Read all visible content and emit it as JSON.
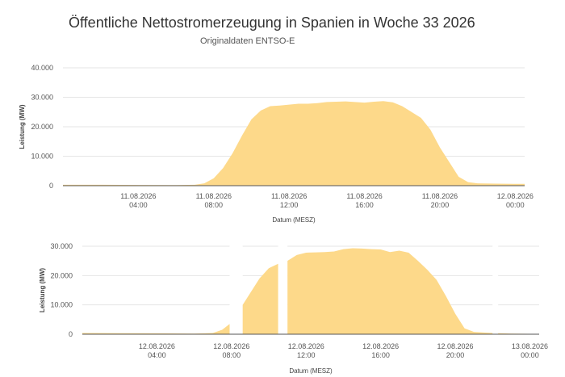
{
  "header": {
    "title": "Öffentliche Nettostromerzeugung in Spanien in Woche 33 2026",
    "subtitle": "Originaldaten ENTSO-E"
  },
  "colors": {
    "area": "#fdd98a",
    "line": "#3a3a3a",
    "grid": "#e6e6e6"
  },
  "chart_data": [
    {
      "type": "area",
      "title": "",
      "xlabel": "Datum (MESZ)",
      "ylabel": "Leistung (MW)",
      "ylim": [
        0,
        40000
      ],
      "yticks": [
        0,
        10000,
        20000,
        30000,
        40000
      ],
      "ytick_labels": [
        "0",
        "10.000",
        "20.000",
        "30.000",
        "40.000"
      ],
      "xlim": [
        0,
        24.5
      ],
      "xticks": [
        4,
        8,
        12,
        16,
        20,
        24
      ],
      "xtick_labels": [
        [
          "11.08.2026",
          "04:00"
        ],
        [
          "11.08.2026",
          "08:00"
        ],
        [
          "11.08.2026",
          "12:00"
        ],
        [
          "11.08.2026",
          "16:00"
        ],
        [
          "11.08.2026",
          "20:00"
        ],
        [
          "12.08.2026",
          "00:00"
        ]
      ],
      "grid": true,
      "x_unit": "hours since 11.08.2026 00:00",
      "series": [
        {
          "x": [
            0,
            2,
            4,
            6,
            7,
            7.5,
            8,
            8.5,
            9,
            9.5,
            10,
            10.5,
            11,
            11.5,
            12,
            12.5,
            13,
            13.5,
            14,
            14.5,
            15,
            15.5,
            16,
            16.5,
            17,
            17.5,
            18,
            18.5,
            19,
            19.5,
            20,
            20.5,
            21,
            21.5,
            22,
            23,
            24,
            24.5
          ],
          "values": [
            300,
            300,
            250,
            200,
            300,
            800,
            2500,
            6000,
            11000,
            17000,
            22500,
            25500,
            27000,
            27200,
            27500,
            27800,
            27800,
            28000,
            28400,
            28500,
            28600,
            28400,
            28200,
            28500,
            28700,
            28300,
            27000,
            25000,
            23000,
            19000,
            13000,
            8000,
            3000,
            1200,
            800,
            700,
            600,
            600
          ]
        }
      ]
    },
    {
      "type": "area",
      "title": "",
      "xlabel": "Datum (MESZ)",
      "ylabel": "Leistung (MW)",
      "ylim": [
        0,
        30000
      ],
      "yticks": [
        0,
        10000,
        20000,
        30000
      ],
      "ytick_labels": [
        "0",
        "10.000",
        "20.000",
        "30.000"
      ],
      "xlim": [
        0,
        24.5
      ],
      "xticks": [
        4,
        8,
        12,
        16,
        20,
        24
      ],
      "xtick_labels": [
        [
          "12.08.2026",
          "04:00"
        ],
        [
          "12.08.2026",
          "08:00"
        ],
        [
          "12.08.2026",
          "12:00"
        ],
        [
          "12.08.2026",
          "16:00"
        ],
        [
          "12.08.2026",
          "20:00"
        ],
        [
          "13.08.2026",
          "00:00"
        ]
      ],
      "grid": true,
      "x_unit": "hours since 12.08.2026 00:00",
      "series": [
        {
          "x": [
            0,
            2,
            4,
            6,
            7,
            7.5,
            8,
            8.5,
            9,
            9.5,
            10,
            10.5,
            11.0
          ],
          "values": [
            400,
            350,
            300,
            200,
            400,
            1500,
            4000,
            9000,
            14000,
            19000,
            22500,
            24000,
            25000
          ]
        },
        {
          "x": [
            11.0,
            11.5,
            12,
            12.5,
            13,
            13.5,
            14,
            14.5,
            15,
            15.5,
            16,
            16.5,
            17,
            17.5,
            18,
            18.5,
            19,
            19.5,
            20,
            20.5,
            21,
            21.5,
            22,
            22.5,
            23,
            24,
            24.5
          ],
          "values": [
            25000,
            27000,
            27800,
            27900,
            28000,
            28200,
            29000,
            29300,
            29200,
            29000,
            28900,
            28000,
            28500,
            27800,
            25000,
            22000,
            18500,
            13000,
            7000,
            2000,
            800,
            600,
            400,
            300,
            200,
            150,
            150
          ]
        }
      ],
      "gaps": [
        [
          7.9,
          8.6
        ],
        [
          10.5,
          11.0
        ],
        [
          22.0,
          22.3
        ]
      ]
    }
  ]
}
